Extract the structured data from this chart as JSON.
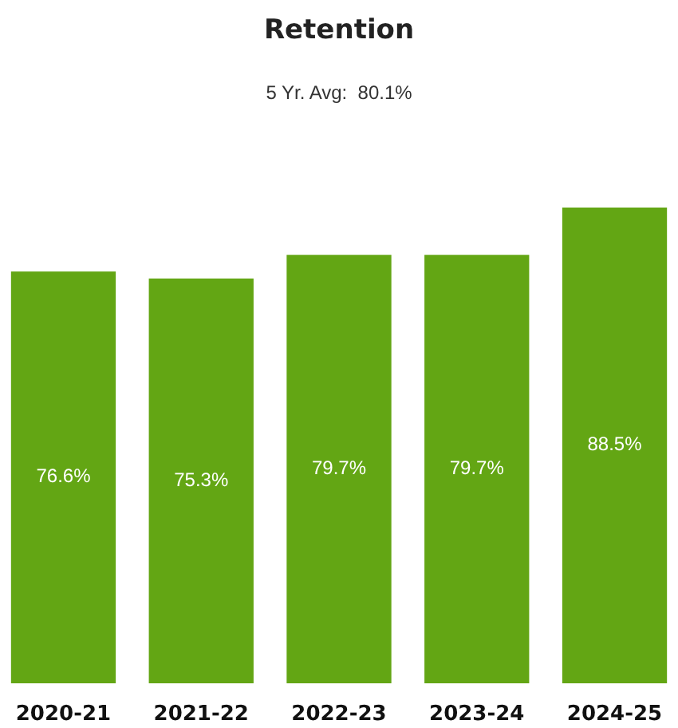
{
  "chart_data": {
    "type": "bar",
    "title": "Retention",
    "subtitle": "5 Yr. Avg:  80.1%",
    "categories": [
      "2020-21",
      "2021-22",
      "2022-23",
      "2023-24",
      "2024-25"
    ],
    "values": [
      76.6,
      75.3,
      79.7,
      79.7,
      88.5
    ],
    "value_labels": [
      "76.6%",
      "75.3%",
      "79.7%",
      "79.7%",
      "88.5%"
    ],
    "color": "#63a614"
  }
}
